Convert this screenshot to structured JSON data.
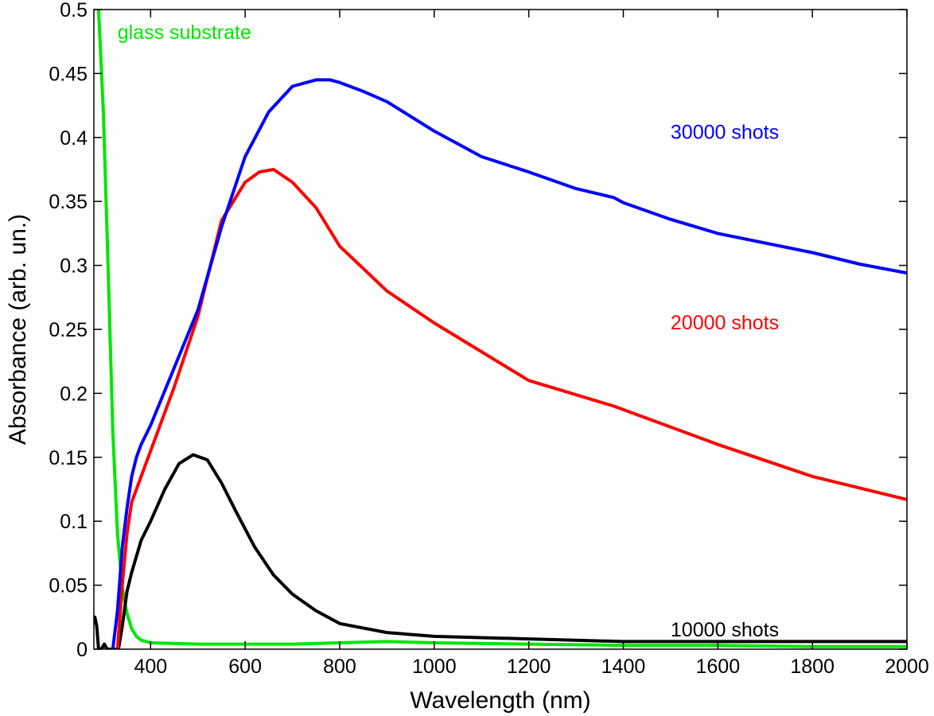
{
  "chart_data": {
    "type": "line",
    "title": "",
    "xlabel": "Wavelength (nm)",
    "ylabel": "Absorbance (arb. un.)",
    "xlim": [
      280,
      2000
    ],
    "ylim": [
      0,
      0.5
    ],
    "grid": false,
    "xticks": [
      400,
      600,
      800,
      1000,
      1200,
      1400,
      1600,
      1800,
      2000
    ],
    "xtick_labels": [
      "400",
      "600",
      "800",
      "1000",
      "1200",
      "1400",
      "1600",
      "1800",
      "2000"
    ],
    "yticks": [
      0,
      0.05,
      0.1,
      0.15,
      0.2,
      0.25,
      0.3,
      0.35,
      0.4,
      0.45,
      0.5
    ],
    "ytick_labels": [
      "0",
      "0.05",
      "0.1",
      "0.15",
      "0.2",
      "0.25",
      "0.3",
      "0.35",
      "0.4",
      "0.45",
      "0.5"
    ],
    "series": [
      {
        "name": "glass substrate",
        "color": "#00e600",
        "x": [
          290,
          300,
          310,
          320,
          330,
          340,
          350,
          360,
          370,
          380,
          400,
          500,
          600,
          700,
          800,
          900,
          1000,
          1200,
          1400,
          1600,
          1800,
          2000
        ],
        "y": [
          0.5,
          0.42,
          0.3,
          0.17,
          0.09,
          0.048,
          0.028,
          0.016,
          0.01,
          0.007,
          0.005,
          0.004,
          0.004,
          0.004,
          0.005,
          0.006,
          0.005,
          0.004,
          0.003,
          0.003,
          0.002,
          0.002
        ]
      },
      {
        "name": "10000 shots",
        "color": "#000000",
        "x": [
          282,
          286,
          290,
          296,
          302,
          308,
          314,
          320,
          326,
          332,
          340,
          350,
          360,
          380,
          400,
          430,
          460,
          490,
          520,
          550,
          580,
          620,
          660,
          700,
          750,
          800,
          900,
          1000,
          1200,
          1400,
          1600,
          1800,
          2000
        ],
        "y": [
          0.025,
          0.018,
          0.0,
          0.0,
          0.004,
          0.0,
          0.0,
          0.0,
          0.0,
          0.0,
          0.018,
          0.045,
          0.06,
          0.085,
          0.1,
          0.125,
          0.145,
          0.152,
          0.148,
          0.13,
          0.108,
          0.08,
          0.058,
          0.043,
          0.03,
          0.02,
          0.013,
          0.01,
          0.008,
          0.006,
          0.006,
          0.006,
          0.006
        ]
      },
      {
        "name": "20000 shots",
        "color": "#ff0000",
        "x": [
          330,
          340,
          350,
          360,
          370,
          380,
          400,
          450,
          500,
          550,
          600,
          630,
          660,
          700,
          750,
          800,
          900,
          1000,
          1200,
          1380,
          1600,
          1800,
          2000
        ],
        "y": [
          0.0,
          0.05,
          0.09,
          0.115,
          0.125,
          0.135,
          0.155,
          0.205,
          0.26,
          0.335,
          0.365,
          0.373,
          0.375,
          0.365,
          0.345,
          0.315,
          0.28,
          0.255,
          0.21,
          0.19,
          0.16,
          0.135,
          0.117
        ]
      },
      {
        "name": "30000 shots",
        "color": "#0000ff",
        "x": [
          320,
          330,
          340,
          350,
          360,
          370,
          380,
          400,
          450,
          500,
          550,
          600,
          650,
          700,
          750,
          780,
          800,
          850,
          900,
          1000,
          1100,
          1200,
          1300,
          1380,
          1400,
          1500,
          1600,
          1800,
          1900,
          2000
        ],
        "y": [
          0.0,
          0.03,
          0.08,
          0.11,
          0.135,
          0.15,
          0.16,
          0.175,
          0.22,
          0.265,
          0.33,
          0.385,
          0.42,
          0.44,
          0.445,
          0.445,
          0.443,
          0.436,
          0.428,
          0.405,
          0.385,
          0.373,
          0.36,
          0.353,
          0.349,
          0.336,
          0.325,
          0.31,
          0.301,
          0.294
        ]
      }
    ],
    "annotations": [
      {
        "text": "glass substrate",
        "x": 330,
        "y": 0.477,
        "color": "#00e600"
      },
      {
        "text": "30000 shots",
        "x": 1500,
        "y": 0.399,
        "color": "#0000ff"
      },
      {
        "text": "20000 shots",
        "x": 1500,
        "y": 0.25,
        "color": "#ff0000"
      },
      {
        "text": "10000 shots",
        "x": 1500,
        "y": 0.01,
        "color": "#000000"
      }
    ]
  }
}
